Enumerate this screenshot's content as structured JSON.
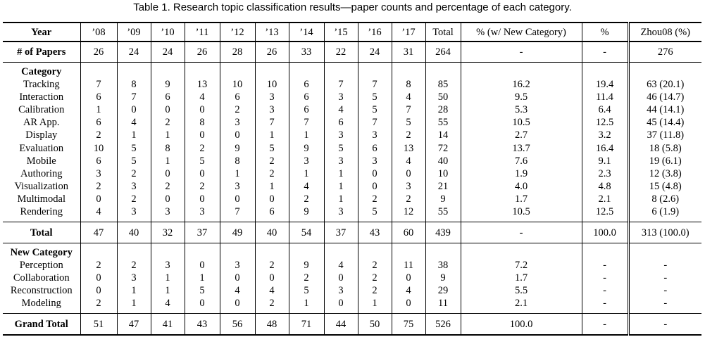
{
  "caption": "Table 1. Research topic classification results—paper counts and percentage of each category.",
  "header": [
    "Year",
    "’08",
    "’09",
    "’10",
    "’11",
    "’12",
    "’13",
    "’14",
    "’15",
    "’16",
    "’17",
    "Total",
    "% (w/ New Category)",
    "%",
    "Zhou08 (%)"
  ],
  "papers": [
    "# of Papers",
    "26",
    "24",
    "24",
    "26",
    "28",
    "26",
    "33",
    "22",
    "24",
    "31",
    "264",
    "-",
    "-",
    "276"
  ],
  "category_heading": "Category",
  "categories": [
    [
      "Tracking",
      "7",
      "8",
      "9",
      "13",
      "10",
      "10",
      "6",
      "7",
      "7",
      "8",
      "85",
      "16.2",
      "19.4",
      "63 (20.1)"
    ],
    [
      "Interaction",
      "6",
      "7",
      "6",
      "4",
      "6",
      "3",
      "6",
      "3",
      "5",
      "4",
      "50",
      "9.5",
      "11.4",
      "46 (14.7)"
    ],
    [
      "Calibration",
      "1",
      "0",
      "0",
      "0",
      "2",
      "3",
      "6",
      "4",
      "5",
      "7",
      "28",
      "5.3",
      "6.4",
      "44 (14.1)"
    ],
    [
      "AR App.",
      "6",
      "4",
      "2",
      "8",
      "3",
      "7",
      "7",
      "6",
      "7",
      "5",
      "55",
      "10.5",
      "12.5",
      "45 (14.4)"
    ],
    [
      "Display",
      "2",
      "1",
      "1",
      "0",
      "0",
      "1",
      "1",
      "3",
      "3",
      "2",
      "14",
      "2.7",
      "3.2",
      "37 (11.8)"
    ],
    [
      "Evaluation",
      "10",
      "5",
      "8",
      "2",
      "9",
      "5",
      "9",
      "5",
      "6",
      "13",
      "72",
      "13.7",
      "16.4",
      "18 (5.8)"
    ],
    [
      "Mobile",
      "6",
      "5",
      "1",
      "5",
      "8",
      "2",
      "3",
      "3",
      "3",
      "4",
      "40",
      "7.6",
      "9.1",
      "19 (6.1)"
    ],
    [
      "Authoring",
      "3",
      "2",
      "0",
      "0",
      "1",
      "2",
      "1",
      "1",
      "0",
      "0",
      "10",
      "1.9",
      "2.3",
      "12 (3.8)"
    ],
    [
      "Visualization",
      "2",
      "3",
      "2",
      "2",
      "3",
      "1",
      "4",
      "1",
      "0",
      "3",
      "21",
      "4.0",
      "4.8",
      "15 (4.8)"
    ],
    [
      "Multimodal",
      "0",
      "2",
      "0",
      "0",
      "0",
      "0",
      "2",
      "1",
      "2",
      "2",
      "9",
      "1.7",
      "2.1",
      "8 (2.6)"
    ],
    [
      "Rendering",
      "4",
      "3",
      "3",
      "3",
      "7",
      "6",
      "9",
      "3",
      "5",
      "12",
      "55",
      "10.5",
      "12.5",
      "6 (1.9)"
    ]
  ],
  "total": [
    "Total",
    "47",
    "40",
    "32",
    "37",
    "49",
    "40",
    "54",
    "37",
    "43",
    "60",
    "439",
    "-",
    "100.0",
    "313 (100.0)"
  ],
  "new_category_heading": "New Category",
  "new_categories": [
    [
      "Perception",
      "2",
      "2",
      "3",
      "0",
      "3",
      "2",
      "9",
      "4",
      "2",
      "11",
      "38",
      "7.2",
      "-",
      "-"
    ],
    [
      "Collaboration",
      "0",
      "3",
      "1",
      "1",
      "0",
      "0",
      "2",
      "0",
      "2",
      "0",
      "9",
      "1.7",
      "-",
      "-"
    ],
    [
      "Reconstruction",
      "0",
      "1",
      "1",
      "5",
      "4",
      "4",
      "5",
      "3",
      "2",
      "4",
      "29",
      "5.5",
      "-",
      "-"
    ],
    [
      "Modeling",
      "2",
      "1",
      "4",
      "0",
      "0",
      "2",
      "1",
      "0",
      "1",
      "0",
      "11",
      "2.1",
      "-",
      "-"
    ]
  ],
  "grand_total": [
    "Grand Total",
    "51",
    "47",
    "41",
    "43",
    "56",
    "48",
    "71",
    "44",
    "50",
    "75",
    "526",
    "100.0",
    "-",
    "-"
  ]
}
